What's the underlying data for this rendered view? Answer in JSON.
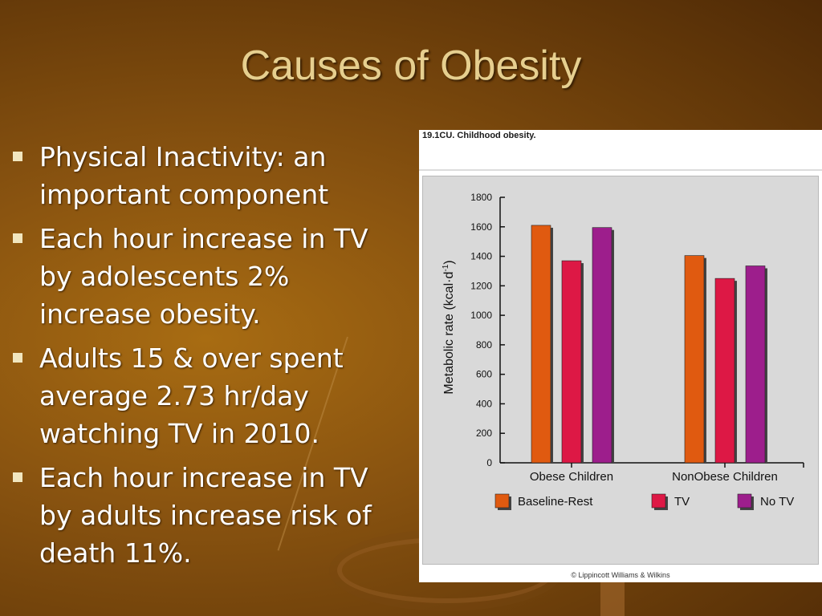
{
  "slide": {
    "title": "Causes of Obesity",
    "bullets": [
      "Physical Inactivity: an important component",
      "Each hour increase in TV by adolescents 2% increase obesity.",
      "Adults 15 & over spent average 2.73 hr/day watching TV in 2010.",
      "Each hour increase in TV by adults increase risk of death 11%."
    ]
  },
  "figure": {
    "label": "19.1CU. Childhood obesity.",
    "copyright": "© Lippincott Williams & Wilkins"
  },
  "chart_data": {
    "type": "bar",
    "title": "",
    "ylabel": "Metabolic rate (kcal·d⁻¹)",
    "ylabel_main": "Metabolic rate (kcal·d",
    "ylabel_sup": "-1",
    "ylabel_end": ")",
    "xlabel": "",
    "ylim": [
      0,
      1800
    ],
    "yticks": [
      0,
      200,
      400,
      600,
      800,
      1000,
      1200,
      1400,
      1600,
      1800
    ],
    "categories": [
      "Obese Children",
      "NonObese Children"
    ],
    "series": [
      {
        "name": "Baseline-Rest",
        "values": [
          1610,
          1405
        ],
        "color": "#e05a10"
      },
      {
        "name": "TV",
        "values": [
          1370,
          1250
        ],
        "color": "#dd1845"
      },
      {
        "name": "No TV",
        "values": [
          1595,
          1335
        ],
        "color": "#9d1e8c"
      }
    ],
    "legend": "bottom",
    "grid": false
  }
}
